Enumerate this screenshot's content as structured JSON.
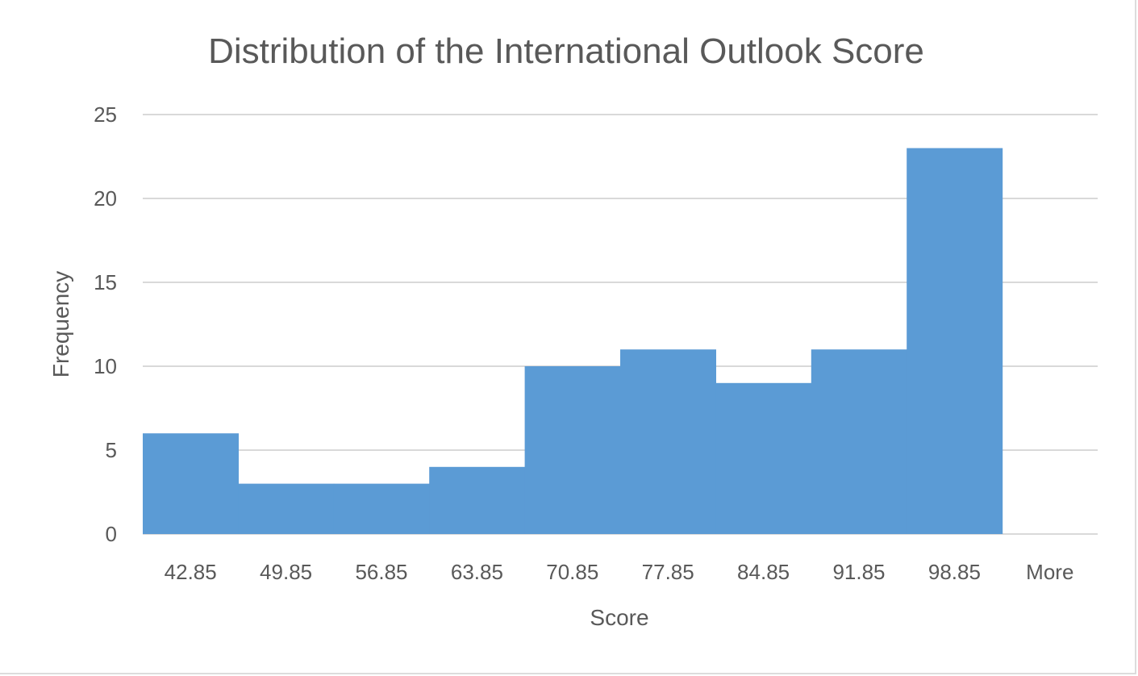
{
  "chart_data": {
    "type": "bar",
    "title": "Distribution of the International Outlook Score",
    "xlabel": "Score",
    "ylabel": "Frequency",
    "categories": [
      "42.85",
      "49.85",
      "56.85",
      "63.85",
      "70.85",
      "77.85",
      "84.85",
      "91.85",
      "98.85",
      "More"
    ],
    "values": [
      6,
      3,
      3,
      4,
      10,
      11,
      9,
      11,
      23,
      0
    ],
    "ylim": [
      0,
      25
    ],
    "yticks": [
      "0",
      "5",
      "10",
      "15",
      "20",
      "25"
    ],
    "grid": true,
    "legend": "none",
    "bar_color": "#5b9bd5"
  }
}
